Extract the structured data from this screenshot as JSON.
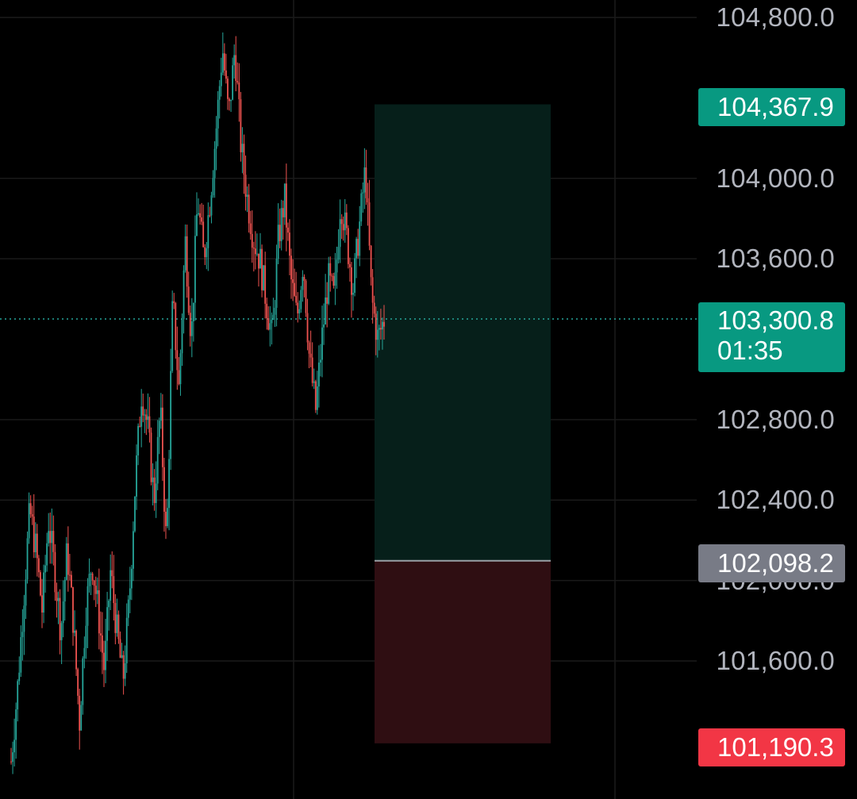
{
  "axis": {
    "price_min": 101000,
    "price_max": 104800,
    "ticks": [
      {
        "value": 104800,
        "label": "104,800.0"
      },
      {
        "value": 104000,
        "label": "104,000.0"
      },
      {
        "value": 103600,
        "label": "103,600.0"
      },
      {
        "value": 102800,
        "label": "102,800.0"
      },
      {
        "value": 102400,
        "label": "102,400.0"
      },
      {
        "value": 101600,
        "label": "101,600.0"
      }
    ],
    "hidden_tick": {
      "value": 102000,
      "label": "102,000.0"
    }
  },
  "price_tags": {
    "take_profit": "104,367.9",
    "current_price": "103,300.8",
    "countdown": "01:35",
    "entry": "102,098.2",
    "stop_loss": "101,190.3"
  },
  "position": {
    "take_profit": 104367.9,
    "entry": 102098.2,
    "stop_loss": 101190.3,
    "current": 103300.8
  },
  "colors": {
    "background": "#000000",
    "up": "#26a69a",
    "down": "#ef5350",
    "profit_zone": "#061f1a",
    "loss_zone": "#2f0e12",
    "tag_green": "#089981",
    "tag_gray": "#787b86",
    "tag_red": "#f23645",
    "grid": "#1a1a1a"
  },
  "chart_data": {
    "type": "line",
    "title": "",
    "xlabel": "",
    "ylabel": "",
    "ylim": [
      101000,
      104800
    ],
    "series": [
      {
        "values": [
          101100,
          101450,
          101900,
          102350,
          102150,
          101850,
          102300,
          102050,
          101750,
          102150,
          101800,
          101300,
          101850,
          102100,
          101850,
          101550,
          102050,
          101750,
          101500,
          101900,
          102500,
          102950,
          102750,
          102400,
          102850,
          102150,
          103400,
          102950,
          103700,
          103200,
          103900,
          103600,
          103900,
          104250,
          104650,
          104300,
          104650,
          104150,
          103900,
          103700,
          103600,
          103400,
          103200,
          103700,
          103900,
          103500,
          103300,
          103600,
          103100,
          102850,
          103200,
          103500,
          103400,
          103900,
          103700,
          103450,
          103750,
          104050,
          103400,
          103200,
          103300
        ]
      }
    ]
  }
}
